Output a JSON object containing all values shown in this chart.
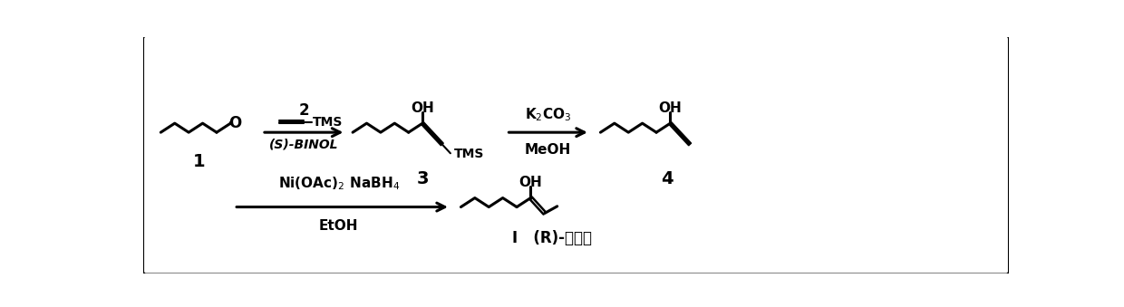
{
  "bg_color": "#ffffff",
  "border_color": "#000000",
  "lw": 2.2,
  "fig_width": 12.4,
  "fig_height": 3.39,
  "label_1": "1",
  "label_3": "3",
  "label_4": "4",
  "label_I": "I",
  "r1_top": "2",
  "r1_mid_label": "TMS",
  "r1_bot": "(S)-BINOL",
  "r2_top": "K$_2$CO$_3$",
  "r2_bot": "MeOH",
  "r3_top": "Ni(OAc)$_2$ NaBH$_4$",
  "r3_bot": "EtOH",
  "product_label": "I   (R)-松茸醇",
  "OH": "OH",
  "TMS": "TMS",
  "O": "O"
}
